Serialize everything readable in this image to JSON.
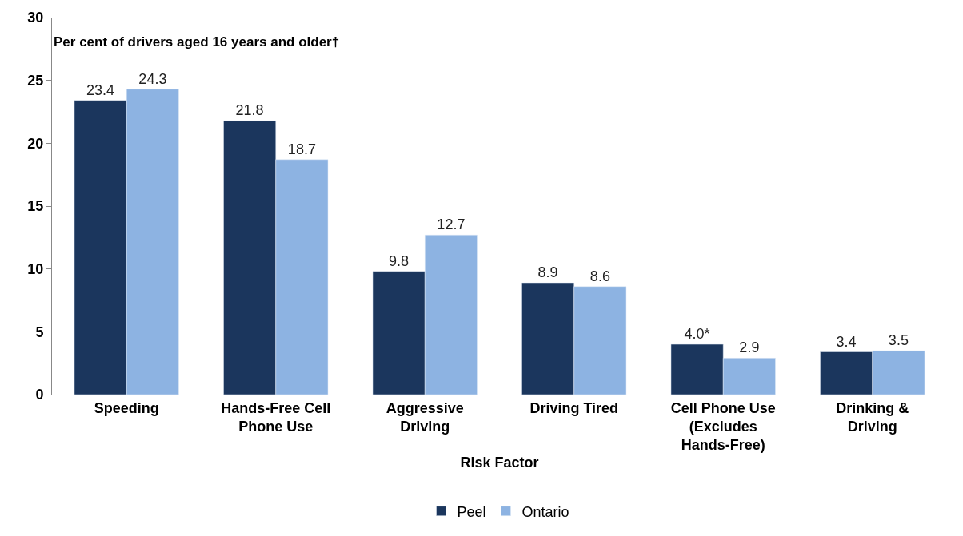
{
  "chart_data": {
    "type": "bar",
    "ylabel": "Per cent of drivers aged 16 years and older†",
    "xlabel": "Risk Factor",
    "categories": [
      "Speeding",
      "Hands-Free Cell Phone Use",
      "Aggressive Driving",
      "Driving Tired",
      "Cell Phone Use (Excludes Hands-Free)",
      "Drinking & Driving"
    ],
    "series": [
      {
        "name": "Peel",
        "color": "#1b365d",
        "values": [
          23.4,
          21.8,
          9.8,
          8.9,
          4.0,
          3.4
        ],
        "value_labels": [
          "23.4",
          "21.8",
          "9.8",
          "8.9",
          "4.0*",
          "3.4"
        ]
      },
      {
        "name": "Ontario",
        "color": "#8db3e2",
        "values": [
          24.3,
          18.7,
          12.7,
          8.6,
          2.9,
          3.5
        ],
        "value_labels": [
          "24.3",
          "18.7",
          "12.7",
          "8.6",
          "2.9",
          "3.5"
        ]
      }
    ],
    "ylim": [
      0,
      30
    ],
    "yticks": [
      0,
      5,
      10,
      15,
      20,
      25,
      30
    ],
    "legend": "bottom"
  }
}
